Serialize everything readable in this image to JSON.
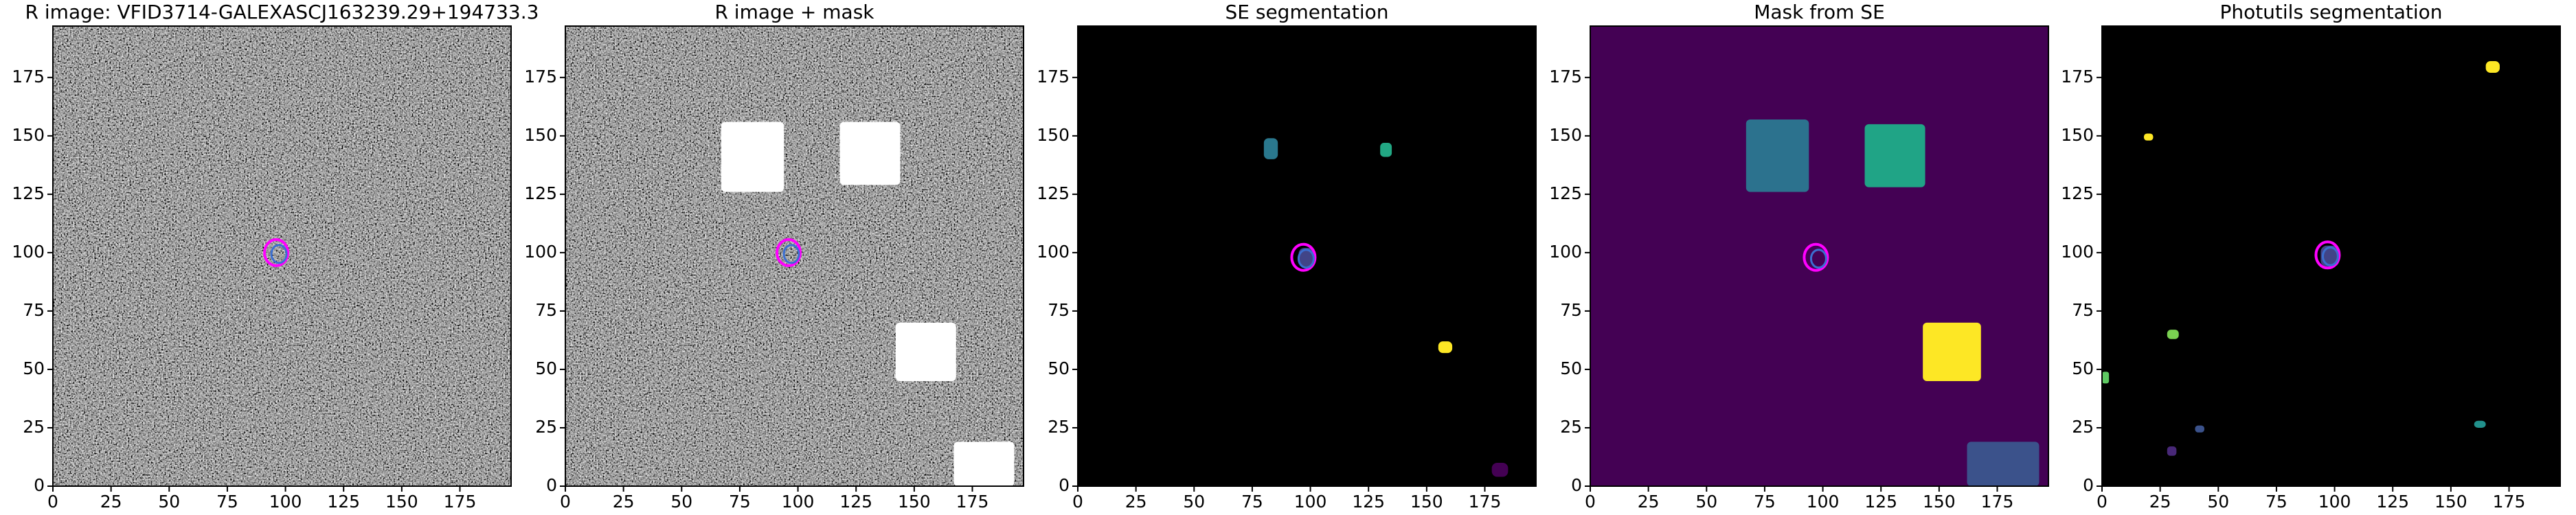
{
  "chart_data": [
    {
      "type": "image",
      "title": "R image: VFID3714-GALEXASCJ163239.29+194733.3",
      "background": "noise",
      "xlim": [
        0,
        197
      ],
      "ylim": [
        0,
        197
      ],
      "xticks": [
        0,
        25,
        50,
        75,
        100,
        125,
        150,
        175
      ],
      "yticks": [
        0,
        25,
        50,
        75,
        100,
        125,
        150,
        175
      ],
      "regions": [],
      "markers": [
        {
          "x": 96,
          "y": 100,
          "color": "#ff00ff"
        }
      ]
    },
    {
      "type": "image",
      "title": "R image + mask",
      "background": "noise",
      "xlim": [
        0,
        197
      ],
      "ylim": [
        0,
        197
      ],
      "xticks": [
        0,
        25,
        50,
        75,
        100,
        125,
        150,
        175
      ],
      "yticks": [
        0,
        25,
        50,
        75,
        100,
        125,
        150,
        175
      ],
      "regions": [
        {
          "x": [
            67,
            94
          ],
          "y": [
            126,
            156
          ],
          "color": "#ffffff"
        },
        {
          "x": [
            118,
            144
          ],
          "y": [
            129,
            156
          ],
          "color": "#ffffff"
        },
        {
          "x": [
            142,
            168
          ],
          "y": [
            45,
            70
          ],
          "color": "#ffffff"
        },
        {
          "x": [
            167,
            193
          ],
          "y": [
            0,
            19
          ],
          "color": "#ffffff"
        }
      ],
      "markers": [
        {
          "x": 96,
          "y": 100,
          "color": "#ff00ff"
        }
      ]
    },
    {
      "type": "image",
      "title": "SE segmentation",
      "background": "#000000",
      "xlim": [
        0,
        197
      ],
      "ylim": [
        0,
        197
      ],
      "xticks": [
        0,
        25,
        50,
        75,
        100,
        125,
        150,
        175
      ],
      "yticks": [
        0,
        25,
        50,
        75,
        100,
        125,
        150,
        175
      ],
      "regions": [
        {
          "x": [
            80,
            86
          ],
          "y": [
            140,
            149
          ],
          "color": "#2a788e"
        },
        {
          "x": [
            130,
            135
          ],
          "y": [
            141,
            147
          ],
          "color": "#22a884"
        },
        {
          "x": [
            95,
            102
          ],
          "y": [
            94,
            102
          ],
          "color": "#414487"
        },
        {
          "x": [
            155,
            161
          ],
          "y": [
            57,
            62
          ],
          "color": "#fde725"
        },
        {
          "x": [
            178,
            185
          ],
          "y": [
            4,
            10
          ],
          "color": "#440154"
        }
      ],
      "markers": [
        {
          "x": 97,
          "y": 98,
          "color": "#ff00ff"
        }
      ]
    },
    {
      "type": "image",
      "title": "Mask from SE",
      "background": "#440154",
      "xlim": [
        0,
        197
      ],
      "ylim": [
        0,
        197
      ],
      "xticks": [
        0,
        25,
        50,
        75,
        100,
        125,
        150,
        175
      ],
      "yticks": [
        0,
        25,
        50,
        75,
        100,
        125,
        150,
        175
      ],
      "regions": [
        {
          "x": [
            67,
            94
          ],
          "y": [
            126,
            157
          ],
          "color": "#2c728e"
        },
        {
          "x": [
            118,
            144
          ],
          "y": [
            128,
            155
          ],
          "color": "#20a486"
        },
        {
          "x": [
            143,
            168
          ],
          "y": [
            45,
            70
          ],
          "color": "#fde725"
        },
        {
          "x": [
            162,
            193
          ],
          "y": [
            0,
            19
          ],
          "color": "#3b528b"
        }
      ],
      "markers": [
        {
          "x": 97,
          "y": 98,
          "color": "#ff00ff"
        }
      ]
    },
    {
      "type": "image",
      "title": "Photutils segmentation",
      "background": "#000000",
      "xlim": [
        0,
        197
      ],
      "ylim": [
        0,
        197
      ],
      "xticks": [
        0,
        25,
        50,
        75,
        100,
        125,
        150,
        175
      ],
      "yticks": [
        0,
        25,
        50,
        75,
        100,
        125,
        150,
        175
      ],
      "regions": [
        {
          "x": [
            18,
            22
          ],
          "y": [
            148,
            151
          ],
          "color": "#fde725"
        },
        {
          "x": [
            165,
            171
          ],
          "y": [
            177,
            182
          ],
          "color": "#fde725"
        },
        {
          "x": [
            94,
            102
          ],
          "y": [
            94,
            103
          ],
          "color": "#414487"
        },
        {
          "x": [
            28,
            33
          ],
          "y": [
            63,
            67
          ],
          "color": "#7ad151"
        },
        {
          "x": [
            40,
            44
          ],
          "y": [
            23,
            26
          ],
          "color": "#3b528b"
        },
        {
          "x": [
            28,
            32
          ],
          "y": [
            13,
            17
          ],
          "color": "#482878"
        },
        {
          "x": [
            160,
            165
          ],
          "y": [
            25,
            28
          ],
          "color": "#21918c"
        },
        {
          "x": [
            0,
            3
          ],
          "y": [
            44,
            49
          ],
          "color": "#5ec962"
        }
      ],
      "markers": [
        {
          "x": 97,
          "y": 99,
          "color": "#ff00ff"
        }
      ]
    }
  ]
}
